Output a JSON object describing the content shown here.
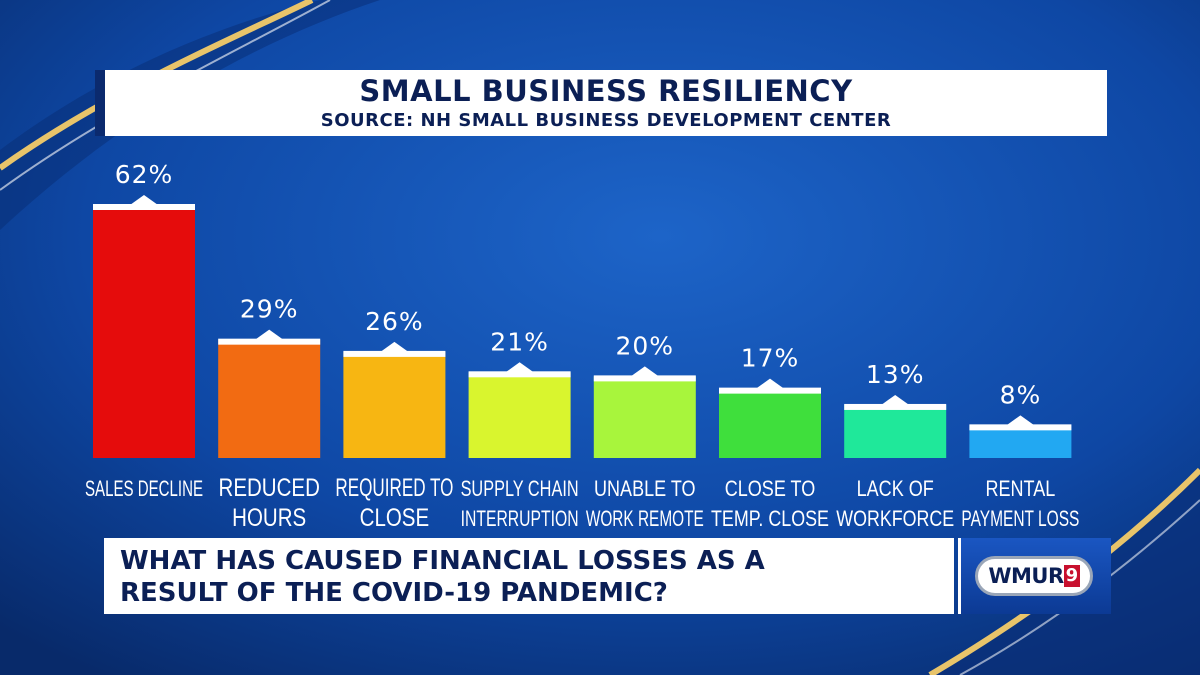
{
  "header": {
    "title": "SMALL BUSINESS RESILIENCY",
    "source": "SOURCE: NH SMALL BUSINESS DEVELOPMENT CENTER"
  },
  "question": {
    "line1": "WHAT HAS CAUSED FINANCIAL LOSSES AS A",
    "line2": "RESULT OF THE COVID-19 PANDEMIC?"
  },
  "logo": {
    "text": "WMUR",
    "number": "9"
  },
  "colors": {
    "background": "#0a3a8c",
    "accent_gold": "#e8c46a",
    "bar_colors": [
      "#e50c0c",
      "#f26b12",
      "#f7b612",
      "#d9f52e",
      "#a8f53c",
      "#3fdf3c",
      "#1fe89a",
      "#22a8f2"
    ]
  },
  "chart_data": {
    "type": "bar",
    "categories": [
      [
        "SALES DECLINE"
      ],
      [
        "REDUCED",
        "HOURS"
      ],
      [
        "REQUIRED TO",
        "CLOSE"
      ],
      [
        "SUPPLY CHAIN",
        "INTERRUPTION"
      ],
      [
        "UNABLE TO",
        "WORK REMOTE"
      ],
      [
        "CLOSE TO",
        "TEMP. CLOSE"
      ],
      [
        "LACK OF",
        "WORKFORCE"
      ],
      [
        "RENTAL",
        "PAYMENT LOSS"
      ]
    ],
    "values": [
      62,
      29,
      26,
      21,
      20,
      17,
      13,
      8
    ],
    "value_labels": [
      "62%",
      "29%",
      "26%",
      "21%",
      "20%",
      "17%",
      "13%",
      "8%"
    ],
    "unit": "%",
    "ylim": [
      0,
      62
    ],
    "grid": false,
    "legend": "none"
  }
}
